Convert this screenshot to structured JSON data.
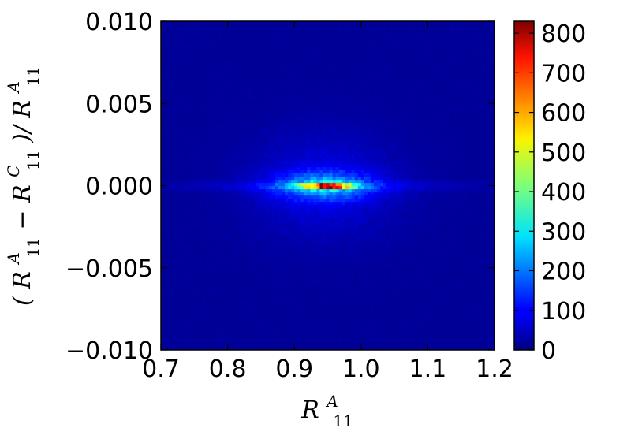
{
  "chart_data": {
    "type": "heatmap",
    "title": "",
    "xlabel": "R_11^A",
    "ylabel": "(R_11^A − R_11^C)/R_11^A",
    "xlabel_parts": {
      "base": "R",
      "sub": "11",
      "sup": "A"
    },
    "ylabel_parts": {
      "open": "(",
      "t1": {
        "base": "R",
        "sub": "11",
        "sup": "A"
      },
      "minus": " − ",
      "t2": {
        "base": "R",
        "sub": "11",
        "sup": "C"
      },
      "close": ")/",
      "t3": {
        "base": "R",
        "sub": "11",
        "sup": "A"
      }
    },
    "xlim": [
      0.7,
      1.2
    ],
    "ylim": [
      -0.01,
      0.01
    ],
    "x_ticks": [
      0.7,
      0.8,
      0.9,
      1.0,
      1.1,
      1.2
    ],
    "x_tick_labels": [
      "0.7",
      "0.8",
      "0.9",
      "1.0",
      "1.1",
      "1.2"
    ],
    "y_ticks": [
      0.01,
      0.005,
      0.0,
      -0.005,
      -0.01
    ],
    "y_tick_labels": [
      "0.010",
      "0.005",
      "0.000",
      "−0.005",
      "−0.010"
    ],
    "colorbar": {
      "range": [
        0,
        830
      ],
      "ticks": [
        800,
        700,
        600,
        500,
        400,
        300,
        200,
        100,
        0
      ],
      "tick_labels": [
        "800",
        "700",
        "600",
        "500",
        "400",
        "300",
        "200",
        "100",
        "0"
      ],
      "colormap": "jet"
    },
    "density_model": {
      "background_count": 20,
      "components": [
        {
          "amplitude": 660,
          "x_center": 0.95,
          "x_sigma": 0.025,
          "y_center": 0.0,
          "y_sigma": 0.00011
        },
        {
          "amplitude": 200,
          "x_center": 0.945,
          "x_sigma": 0.05,
          "y_center": 0.0,
          "y_sigma": 0.0006
        },
        {
          "amplitude": 60,
          "x_center": 0.945,
          "x_sigma": 0.075,
          "y_center": 0.0,
          "y_sigma": 0.0022
        },
        {
          "amplitude": 50,
          "x_center": 0.94,
          "x_sigma": 0.15,
          "y_center": 0.0,
          "y_sigma": 0.00022
        }
      ]
    },
    "grid": false,
    "legend": "none",
    "colors": {
      "low": "#00007f",
      "background": "#0000c8",
      "high": "#7f0000",
      "peak": "#800000"
    }
  }
}
